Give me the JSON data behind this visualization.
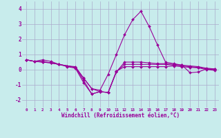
{
  "xlabel": "Windchill (Refroidissement éolien,°C)",
  "background_color": "#c8ecec",
  "grid_color": "#aaaacc",
  "line_color": "#990099",
  "xlim": [
    -0.5,
    23.5
  ],
  "ylim": [
    -2.5,
    4.5
  ],
  "yticks": [
    -2,
    -1,
    0,
    1,
    2,
    3,
    4
  ],
  "xticks": [
    0,
    1,
    2,
    3,
    4,
    5,
    6,
    7,
    8,
    9,
    10,
    11,
    12,
    13,
    14,
    15,
    16,
    17,
    18,
    19,
    20,
    21,
    22,
    23
  ],
  "series": [
    [
      0.65,
      0.55,
      0.65,
      0.55,
      0.35,
      0.25,
      0.2,
      -0.55,
      -1.25,
      -1.35,
      -0.3,
      1.0,
      2.3,
      3.3,
      3.85,
      2.85,
      1.65,
      0.5,
      0.4,
      0.3,
      -0.2,
      -0.15,
      0.05,
      0.05
    ],
    [
      0.65,
      0.55,
      0.55,
      0.45,
      0.35,
      0.25,
      0.15,
      -0.55,
      -1.25,
      -1.45,
      -1.5,
      -0.15,
      0.5,
      0.5,
      0.5,
      0.45,
      0.4,
      0.4,
      0.35,
      0.3,
      0.25,
      0.2,
      0.1,
      0.05
    ],
    [
      0.65,
      0.55,
      0.5,
      0.45,
      0.35,
      0.25,
      0.15,
      -0.7,
      -1.6,
      -1.45,
      -1.5,
      -0.15,
      0.35,
      0.35,
      0.35,
      0.35,
      0.35,
      0.35,
      0.3,
      0.25,
      0.2,
      0.15,
      0.05,
      0.0
    ],
    [
      0.65,
      0.55,
      0.5,
      0.45,
      0.35,
      0.2,
      0.1,
      -0.85,
      -1.6,
      -1.45,
      -1.5,
      -0.1,
      0.2,
      0.2,
      0.2,
      0.2,
      0.2,
      0.2,
      0.25,
      0.2,
      0.15,
      0.12,
      0.02,
      -0.05
    ]
  ]
}
